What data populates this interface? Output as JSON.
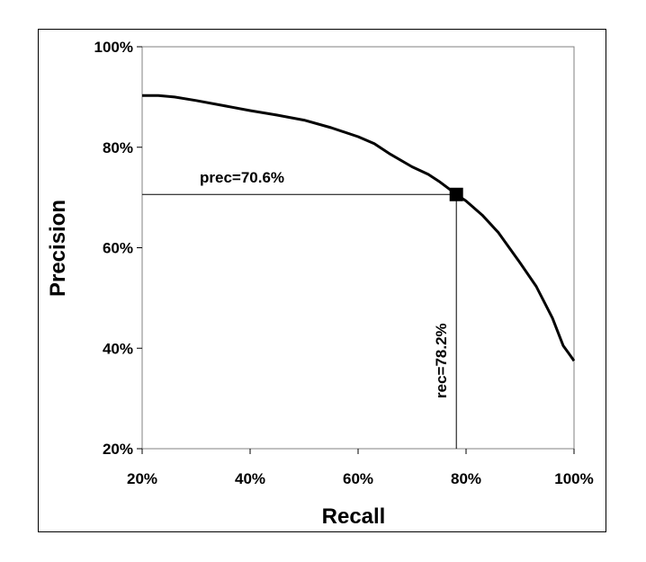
{
  "chart_data": {
    "type": "line",
    "title": "",
    "xlabel": "Recall",
    "ylabel": "Precision",
    "xlim": [
      20,
      100
    ],
    "ylim": [
      20,
      100
    ],
    "x_ticks": [
      "20%",
      "40%",
      "60%",
      "80%",
      "100%"
    ],
    "y_ticks": [
      "20%",
      "40%",
      "60%",
      "80%",
      "100%"
    ],
    "grid": false,
    "legend": "none",
    "series": [
      {
        "color": "#000000",
        "x": [
          20,
          23,
          26,
          30,
          35,
          40,
          45,
          50,
          55,
          60,
          63,
          66,
          70,
          73,
          75,
          77,
          78.2,
          80,
          83,
          86,
          90,
          93,
          96,
          98,
          99,
          100
        ],
        "y": [
          90.3,
          90.3,
          90.0,
          89.3,
          88.3,
          87.3,
          86.4,
          85.4,
          83.9,
          82.1,
          80.7,
          78.6,
          76.1,
          74.6,
          73.2,
          71.6,
          70.6,
          69.3,
          66.5,
          63.0,
          57.0,
          52.3,
          46.0,
          40.5,
          39.0,
          37.5
        ]
      }
    ],
    "highlight": {
      "x": 78.2,
      "y": 70.6
    },
    "annotations": {
      "precision_label": "prec=70.6%",
      "recall_label": "rec=78.2%"
    }
  }
}
